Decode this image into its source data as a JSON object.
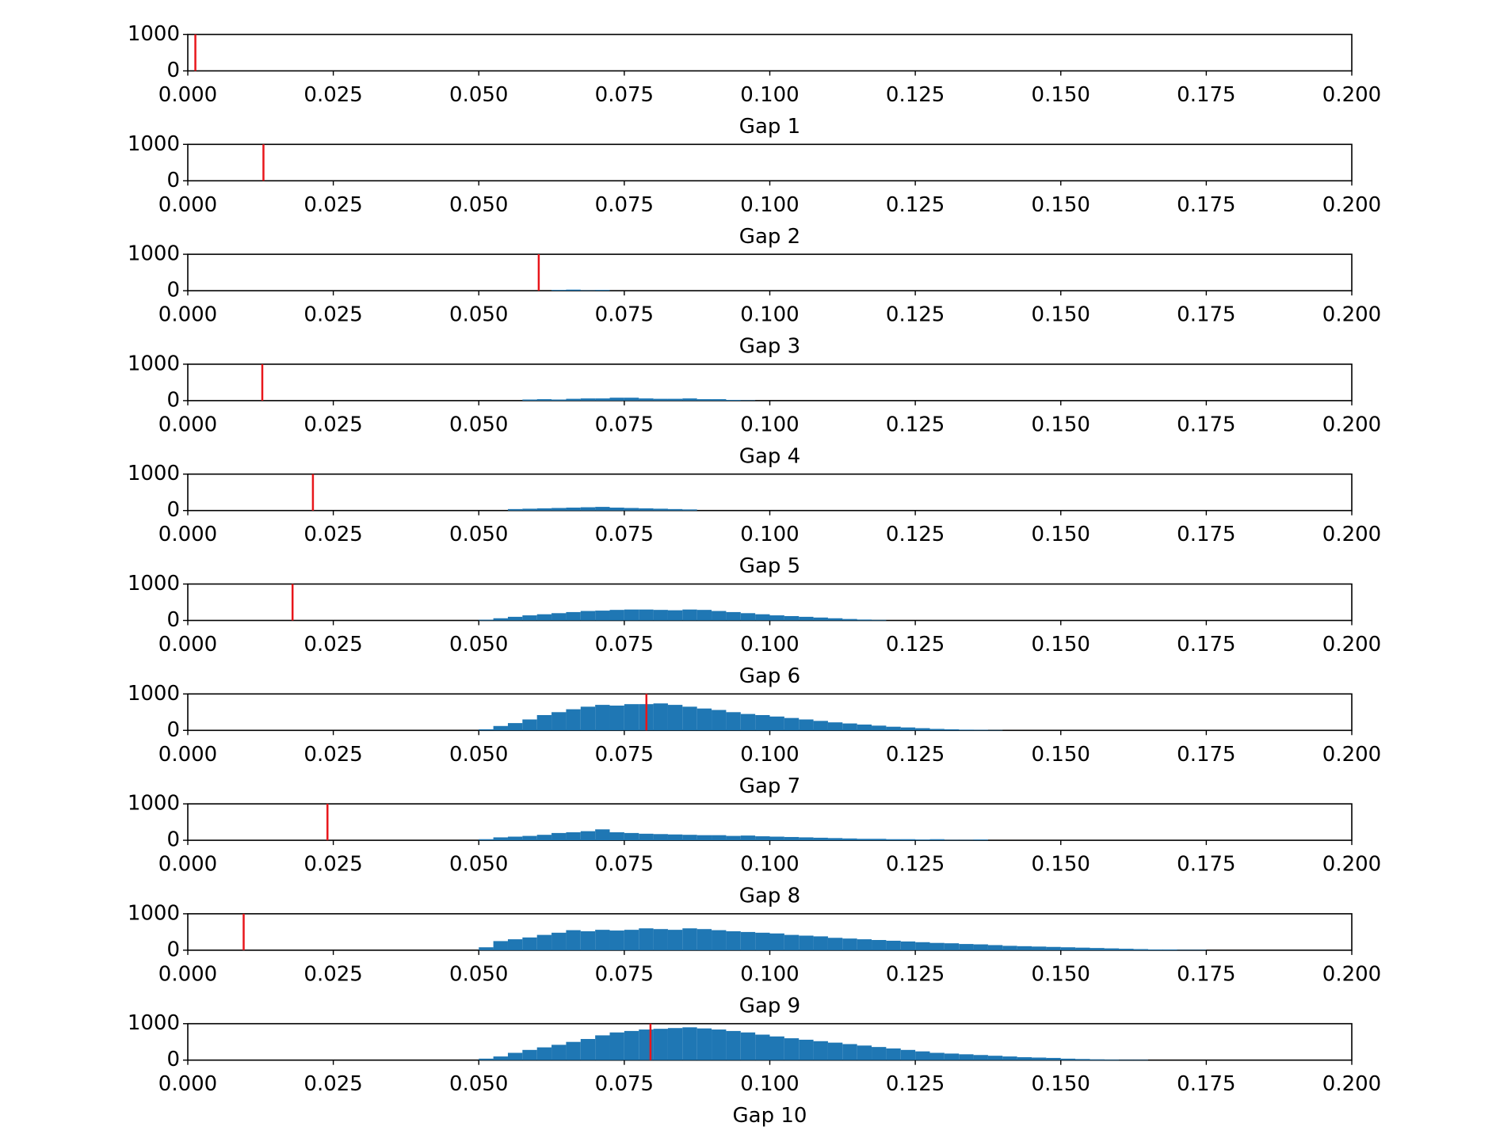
{
  "chart_data": [
    {
      "type": "histogram",
      "xlabel": "Gap 1",
      "color": "#1f77b4",
      "vline": 0.0013,
      "vline_color": "#e8161b",
      "bins": [
        0.06,
        0.0625,
        0.065,
        0.0675,
        0.07
      ],
      "counts": [
        0,
        0,
        0,
        0
      ],
      "xlim": [
        0,
        0.2
      ],
      "xticks": [
        {
          "value": 0,
          "label": "0.000"
        },
        {
          "value": 0.025,
          "label": "0.025"
        },
        {
          "value": 0.05,
          "label": "0.050"
        },
        {
          "value": 0.075,
          "label": "0.075"
        },
        {
          "value": 0.1,
          "label": "0.100"
        },
        {
          "value": 0.125,
          "label": "0.125"
        },
        {
          "value": 0.15,
          "label": "0.150"
        },
        {
          "value": 0.175,
          "label": "0.175"
        },
        {
          "value": 0.2,
          "label": "0.200"
        }
      ],
      "ylim": [
        0,
        1000
      ],
      "yticks": [
        0,
        1000
      ]
    },
    {
      "type": "histogram",
      "xlabel": "Gap 2",
      "color": "#1f77b4",
      "vline": 0.013,
      "vline_color": "#e8161b",
      "bins": [
        0.06,
        0.0625,
        0.065,
        0.0675,
        0.07
      ],
      "counts": [
        0,
        0,
        0,
        0
      ],
      "xlim": [
        0,
        0.2
      ],
      "xticks": [
        {
          "value": 0,
          "label": "0.000"
        },
        {
          "value": 0.025,
          "label": "0.025"
        },
        {
          "value": 0.05,
          "label": "0.050"
        },
        {
          "value": 0.075,
          "label": "0.075"
        },
        {
          "value": 0.1,
          "label": "0.100"
        },
        {
          "value": 0.125,
          "label": "0.125"
        },
        {
          "value": 0.15,
          "label": "0.150"
        },
        {
          "value": 0.175,
          "label": "0.175"
        },
        {
          "value": 0.2,
          "label": "0.200"
        }
      ],
      "ylim": [
        0,
        1000
      ],
      "yticks": [
        0,
        1000
      ]
    },
    {
      "type": "histogram",
      "xlabel": "Gap 3",
      "color": "#1f77b4",
      "vline": 0.0603,
      "vline_color": "#e8161b",
      "bins": [
        0.0625,
        0.065,
        0.0675,
        0.07,
        0.0725
      ],
      "counts": [
        20,
        30,
        10,
        20
      ],
      "xlim": [
        0,
        0.2
      ],
      "xticks": [
        {
          "value": 0,
          "label": "0.000"
        },
        {
          "value": 0.025,
          "label": "0.025"
        },
        {
          "value": 0.05,
          "label": "0.050"
        },
        {
          "value": 0.075,
          "label": "0.075"
        },
        {
          "value": 0.1,
          "label": "0.100"
        },
        {
          "value": 0.125,
          "label": "0.125"
        },
        {
          "value": 0.15,
          "label": "0.150"
        },
        {
          "value": 0.175,
          "label": "0.175"
        },
        {
          "value": 0.2,
          "label": "0.200"
        }
      ],
      "ylim": [
        0,
        1000
      ],
      "yticks": [
        0,
        1000
      ]
    },
    {
      "type": "histogram",
      "xlabel": "Gap 4",
      "color": "#1f77b4",
      "vline": 0.0128,
      "vline_color": "#e8161b",
      "bins": [
        0.0575,
        0.06,
        0.0625,
        0.065,
        0.0675,
        0.07,
        0.0725,
        0.075,
        0.0775,
        0.08,
        0.0825,
        0.085,
        0.0875,
        0.09,
        0.0925,
        0.095,
        0.0975
      ],
      "counts": [
        30,
        40,
        30,
        50,
        60,
        60,
        80,
        80,
        60,
        50,
        50,
        60,
        40,
        40,
        20,
        10
      ],
      "xlim": [
        0,
        0.2
      ],
      "xticks": [
        {
          "value": 0,
          "label": "0.000"
        },
        {
          "value": 0.025,
          "label": "0.025"
        },
        {
          "value": 0.05,
          "label": "0.050"
        },
        {
          "value": 0.075,
          "label": "0.075"
        },
        {
          "value": 0.1,
          "label": "0.100"
        },
        {
          "value": 0.125,
          "label": "0.125"
        },
        {
          "value": 0.15,
          "label": "0.150"
        },
        {
          "value": 0.175,
          "label": "0.175"
        },
        {
          "value": 0.2,
          "label": "0.200"
        }
      ],
      "ylim": [
        0,
        1000
      ],
      "yticks": [
        0,
        1000
      ]
    },
    {
      "type": "histogram",
      "xlabel": "Gap 5",
      "color": "#1f77b4",
      "vline": 0.0215,
      "vline_color": "#e8161b",
      "bins": [
        0.055,
        0.0575,
        0.06,
        0.0625,
        0.065,
        0.0675,
        0.07,
        0.0725,
        0.075,
        0.0775,
        0.08,
        0.0825,
        0.085,
        0.0875
      ],
      "counts": [
        40,
        50,
        60,
        70,
        80,
        90,
        100,
        80,
        70,
        60,
        50,
        40,
        30
      ],
      "xlim": [
        0,
        0.2
      ],
      "xticks": [
        {
          "value": 0,
          "label": "0.000"
        },
        {
          "value": 0.025,
          "label": "0.025"
        },
        {
          "value": 0.05,
          "label": "0.050"
        },
        {
          "value": 0.075,
          "label": "0.075"
        },
        {
          "value": 0.1,
          "label": "0.100"
        },
        {
          "value": 0.125,
          "label": "0.125"
        },
        {
          "value": 0.15,
          "label": "0.150"
        },
        {
          "value": 0.175,
          "label": "0.175"
        },
        {
          "value": 0.2,
          "label": "0.200"
        }
      ],
      "ylim": [
        0,
        1000
      ],
      "yticks": [
        0,
        1000
      ]
    },
    {
      "type": "histogram",
      "xlabel": "Gap 6",
      "color": "#1f77b4",
      "vline": 0.018,
      "vline_color": "#e8161b",
      "bins": [
        0.05,
        0.0525,
        0.055,
        0.0575,
        0.06,
        0.0625,
        0.065,
        0.0675,
        0.07,
        0.0725,
        0.075,
        0.0775,
        0.08,
        0.0825,
        0.085,
        0.0875,
        0.09,
        0.0925,
        0.095,
        0.0975,
        0.1,
        0.1025,
        0.105,
        0.1075,
        0.11,
        0.1125,
        0.115,
        0.1175,
        0.12
      ],
      "counts": [
        20,
        60,
        100,
        140,
        170,
        200,
        230,
        260,
        270,
        290,
        300,
        300,
        290,
        280,
        300,
        290,
        260,
        230,
        200,
        170,
        140,
        120,
        100,
        80,
        60,
        40,
        25,
        15
      ],
      "xlim": [
        0,
        0.2
      ],
      "xticks": [
        {
          "value": 0,
          "label": "0.000"
        },
        {
          "value": 0.025,
          "label": "0.025"
        },
        {
          "value": 0.05,
          "label": "0.050"
        },
        {
          "value": 0.075,
          "label": "0.075"
        },
        {
          "value": 0.1,
          "label": "0.100"
        },
        {
          "value": 0.125,
          "label": "0.125"
        },
        {
          "value": 0.15,
          "label": "0.150"
        },
        {
          "value": 0.175,
          "label": "0.175"
        },
        {
          "value": 0.2,
          "label": "0.200"
        }
      ],
      "ylim": [
        0,
        1000
      ],
      "yticks": [
        0,
        1000
      ]
    },
    {
      "type": "histogram",
      "xlabel": "Gap 7",
      "color": "#1f77b4",
      "vline": 0.0788,
      "vline_color": "#e8161b",
      "bins": [
        0.05,
        0.0525,
        0.055,
        0.0575,
        0.06,
        0.0625,
        0.065,
        0.0675,
        0.07,
        0.0725,
        0.075,
        0.0775,
        0.08,
        0.0825,
        0.085,
        0.0875,
        0.09,
        0.0925,
        0.095,
        0.0975,
        0.1,
        0.1025,
        0.105,
        0.1075,
        0.11,
        0.1125,
        0.115,
        0.1175,
        0.12,
        0.1225,
        0.125,
        0.1275,
        0.13,
        0.1325,
        0.135,
        0.1375,
        0.14
      ],
      "counts": [
        30,
        120,
        200,
        300,
        420,
        500,
        580,
        650,
        700,
        680,
        720,
        720,
        740,
        700,
        650,
        600,
        560,
        500,
        450,
        420,
        380,
        340,
        300,
        260,
        220,
        190,
        160,
        130,
        100,
        80,
        60,
        40,
        30,
        20,
        15,
        10
      ],
      "xlim": [
        0,
        0.2
      ],
      "xticks": [
        {
          "value": 0,
          "label": "0.000"
        },
        {
          "value": 0.025,
          "label": "0.025"
        },
        {
          "value": 0.05,
          "label": "0.050"
        },
        {
          "value": 0.075,
          "label": "0.075"
        },
        {
          "value": 0.1,
          "label": "0.100"
        },
        {
          "value": 0.125,
          "label": "0.125"
        },
        {
          "value": 0.15,
          "label": "0.150"
        },
        {
          "value": 0.175,
          "label": "0.175"
        },
        {
          "value": 0.2,
          "label": "0.200"
        }
      ],
      "ylim": [
        0,
        1000
      ],
      "yticks": [
        0,
        1000
      ]
    },
    {
      "type": "histogram",
      "xlabel": "Gap 8",
      "color": "#1f77b4",
      "vline": 0.024,
      "vline_color": "#e8161b",
      "bins": [
        0.05,
        0.0525,
        0.055,
        0.0575,
        0.06,
        0.0625,
        0.065,
        0.0675,
        0.07,
        0.0725,
        0.075,
        0.0775,
        0.08,
        0.0825,
        0.085,
        0.0875,
        0.09,
        0.0925,
        0.095,
        0.0975,
        0.1,
        0.1025,
        0.105,
        0.1075,
        0.11,
        0.1125,
        0.115,
        0.1175,
        0.12,
        0.1225,
        0.125,
        0.1275,
        0.13,
        0.1325,
        0.135,
        0.1375
      ],
      "counts": [
        30,
        80,
        100,
        120,
        150,
        200,
        220,
        250,
        300,
        220,
        200,
        180,
        170,
        160,
        150,
        140,
        140,
        120,
        130,
        110,
        100,
        90,
        80,
        70,
        60,
        50,
        40,
        40,
        30,
        30,
        20,
        30,
        10,
        10,
        20
      ],
      "xlim": [
        0,
        0.2
      ],
      "xticks": [
        {
          "value": 0,
          "label": "0.000"
        },
        {
          "value": 0.025,
          "label": "0.025"
        },
        {
          "value": 0.05,
          "label": "0.050"
        },
        {
          "value": 0.075,
          "label": "0.075"
        },
        {
          "value": 0.1,
          "label": "0.100"
        },
        {
          "value": 0.125,
          "label": "0.125"
        },
        {
          "value": 0.15,
          "label": "0.150"
        },
        {
          "value": 0.175,
          "label": "0.175"
        },
        {
          "value": 0.2,
          "label": "0.200"
        }
      ],
      "ylim": [
        0,
        1000
      ],
      "yticks": [
        0,
        1000
      ]
    },
    {
      "type": "histogram",
      "xlabel": "Gap 9",
      "color": "#1f77b4",
      "vline": 0.0096,
      "vline_color": "#e8161b",
      "bins": [
        0.05,
        0.0525,
        0.055,
        0.0575,
        0.06,
        0.0625,
        0.065,
        0.0675,
        0.07,
        0.0725,
        0.075,
        0.0775,
        0.08,
        0.0825,
        0.085,
        0.0875,
        0.09,
        0.0925,
        0.095,
        0.0975,
        0.1,
        0.1025,
        0.105,
        0.1075,
        0.11,
        0.1125,
        0.115,
        0.1175,
        0.12,
        0.1225,
        0.125,
        0.1275,
        0.13,
        0.1325,
        0.135,
        0.1375,
        0.14,
        0.1425,
        0.145,
        0.1475,
        0.15,
        0.1525,
        0.155,
        0.1575,
        0.16,
        0.1625,
        0.165,
        0.1675,
        0.17,
        0.1725,
        0.175
      ],
      "counts": [
        80,
        250,
        300,
        350,
        420,
        480,
        550,
        520,
        560,
        540,
        560,
        600,
        580,
        560,
        600,
        580,
        550,
        520,
        500,
        480,
        460,
        420,
        400,
        380,
        340,
        320,
        300,
        280,
        260,
        240,
        220,
        200,
        190,
        170,
        160,
        140,
        120,
        110,
        100,
        90,
        80,
        70,
        60,
        50,
        40,
        30,
        20,
        20,
        10,
        10
      ],
      "xlim": [
        0,
        0.2
      ],
      "xticks": [
        {
          "value": 0,
          "label": "0.000"
        },
        {
          "value": 0.025,
          "label": "0.025"
        },
        {
          "value": 0.05,
          "label": "0.050"
        },
        {
          "value": 0.075,
          "label": "0.075"
        },
        {
          "value": 0.1,
          "label": "0.100"
        },
        {
          "value": 0.125,
          "label": "0.125"
        },
        {
          "value": 0.15,
          "label": "0.150"
        },
        {
          "value": 0.175,
          "label": "0.175"
        },
        {
          "value": 0.2,
          "label": "0.200"
        }
      ],
      "ylim": [
        0,
        1000
      ],
      "yticks": [
        0,
        1000
      ]
    },
    {
      "type": "histogram",
      "xlabel": "Gap 10",
      "color": "#1f77b4",
      "vline": 0.0795,
      "vline_color": "#e8161b",
      "bins": [
        0.05,
        0.0525,
        0.055,
        0.0575,
        0.06,
        0.0625,
        0.065,
        0.0675,
        0.07,
        0.0725,
        0.075,
        0.0775,
        0.08,
        0.0825,
        0.085,
        0.0875,
        0.09,
        0.0925,
        0.095,
        0.0975,
        0.1,
        0.1025,
        0.105,
        0.1075,
        0.11,
        0.1125,
        0.115,
        0.1175,
        0.12,
        0.1225,
        0.125,
        0.1275,
        0.13,
        0.1325,
        0.135,
        0.1375,
        0.14,
        0.1425,
        0.145,
        0.1475,
        0.15,
        0.1525,
        0.155,
        0.1575,
        0.16,
        0.1625,
        0.165
      ],
      "counts": [
        40,
        100,
        200,
        280,
        350,
        420,
        500,
        580,
        680,
        760,
        800,
        840,
        860,
        880,
        900,
        870,
        840,
        800,
        760,
        700,
        650,
        600,
        560,
        520,
        480,
        440,
        400,
        360,
        320,
        280,
        240,
        200,
        180,
        160,
        140,
        120,
        100,
        80,
        70,
        60,
        40,
        30,
        20,
        15,
        10,
        10
      ],
      "xlim": [
        0,
        0.2
      ],
      "xticks": [
        {
          "value": 0,
          "label": "0.000"
        },
        {
          "value": 0.025,
          "label": "0.025"
        },
        {
          "value": 0.05,
          "label": "0.050"
        },
        {
          "value": 0.075,
          "label": "0.075"
        },
        {
          "value": 0.1,
          "label": "0.100"
        },
        {
          "value": 0.125,
          "label": "0.125"
        },
        {
          "value": 0.15,
          "label": "0.150"
        },
        {
          "value": 0.175,
          "label": "0.175"
        },
        {
          "value": 0.2,
          "label": "0.200"
        }
      ],
      "ylim": [
        0,
        1000
      ],
      "yticks": [
        0,
        1000
      ]
    }
  ]
}
